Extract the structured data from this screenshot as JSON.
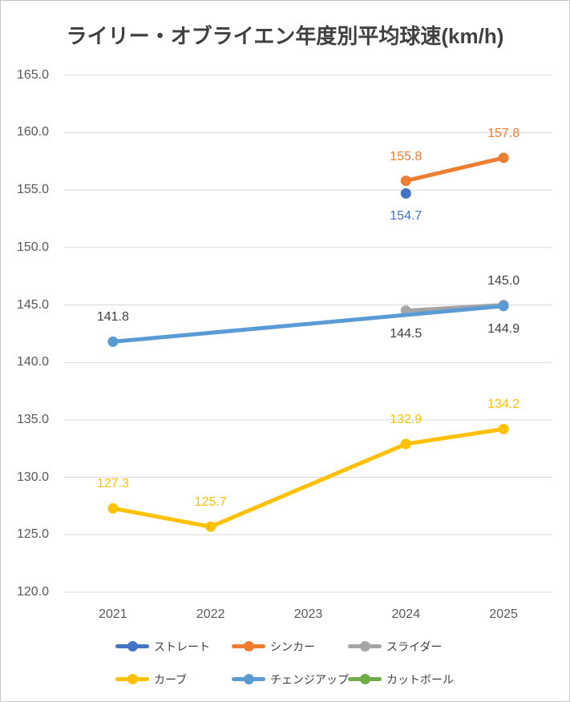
{
  "title": "ライリー・オブライエン年度別平均球速(km/h)",
  "chart_data": {
    "type": "line",
    "title": "ライリー・オブライエン年度別平均球速(km/h)",
    "categories": [
      "2021",
      "2022",
      "2023",
      "2024",
      "2025"
    ],
    "xlabel": "",
    "ylabel": "",
    "ylim": [
      120.0,
      165.0
    ],
    "ytick_step": 5,
    "ytick_labels": [
      "120.0",
      "125.0",
      "130.0",
      "135.0",
      "140.0",
      "145.0",
      "150.0",
      "155.0",
      "160.0",
      "165.0"
    ],
    "grid": true,
    "gridline_color": "#d9d9d9",
    "legend_position": "bottom",
    "axis_text_color": "#595959",
    "series": [
      {
        "key": "straight",
        "name": "ストレート",
        "color": "#4472C4",
        "label_color": "#4472C4",
        "points": [
          {
            "category": "2024",
            "value": 154.7,
            "label": "154.7",
            "label_pos": "below"
          }
        ]
      },
      {
        "key": "sinker",
        "name": "シンカー",
        "color": "#ED7D31",
        "label_color": "#ED7D31",
        "points": [
          {
            "category": "2024",
            "value": 155.8,
            "label": "155.8",
            "label_pos": "above"
          },
          {
            "category": "2025",
            "value": 157.8,
            "label": "157.8",
            "label_pos": "above"
          }
        ]
      },
      {
        "key": "slider",
        "name": "スライダー",
        "color": "#A5A5A5",
        "label_color": "#404040",
        "points": [
          {
            "category": "2024",
            "value": 144.5,
            "label": "144.5",
            "label_pos": "below"
          },
          {
            "category": "2025",
            "value": 145.0,
            "label": "145.0",
            "label_pos": "above"
          }
        ]
      },
      {
        "key": "curve",
        "name": "カーブ",
        "color": "#FFC000",
        "label_color": "#FFC000",
        "points": [
          {
            "category": "2021",
            "value": 127.3,
            "label": "127.3",
            "label_pos": "above"
          },
          {
            "category": "2022",
            "value": 125.7,
            "label": "125.7",
            "label_pos": "above"
          },
          {
            "category": "2024",
            "value": 132.9,
            "label": "132.9",
            "label_pos": "above"
          },
          {
            "category": "2025",
            "value": 134.2,
            "label": "134.2",
            "label_pos": "above"
          }
        ]
      },
      {
        "key": "changeup",
        "name": "チェンジアップ",
        "color": "#5B9BD5",
        "label_color": "#404040",
        "points": [
          {
            "category": "2021",
            "value": 141.8,
            "label": "141.8",
            "label_pos": "above"
          },
          {
            "category": "2025",
            "value": 144.9,
            "label": "144.9",
            "label_pos": "below"
          }
        ]
      },
      {
        "key": "cutball",
        "name": "カットボール",
        "color": "#70AD47",
        "label_color": "#70AD47",
        "points": []
      }
    ]
  }
}
